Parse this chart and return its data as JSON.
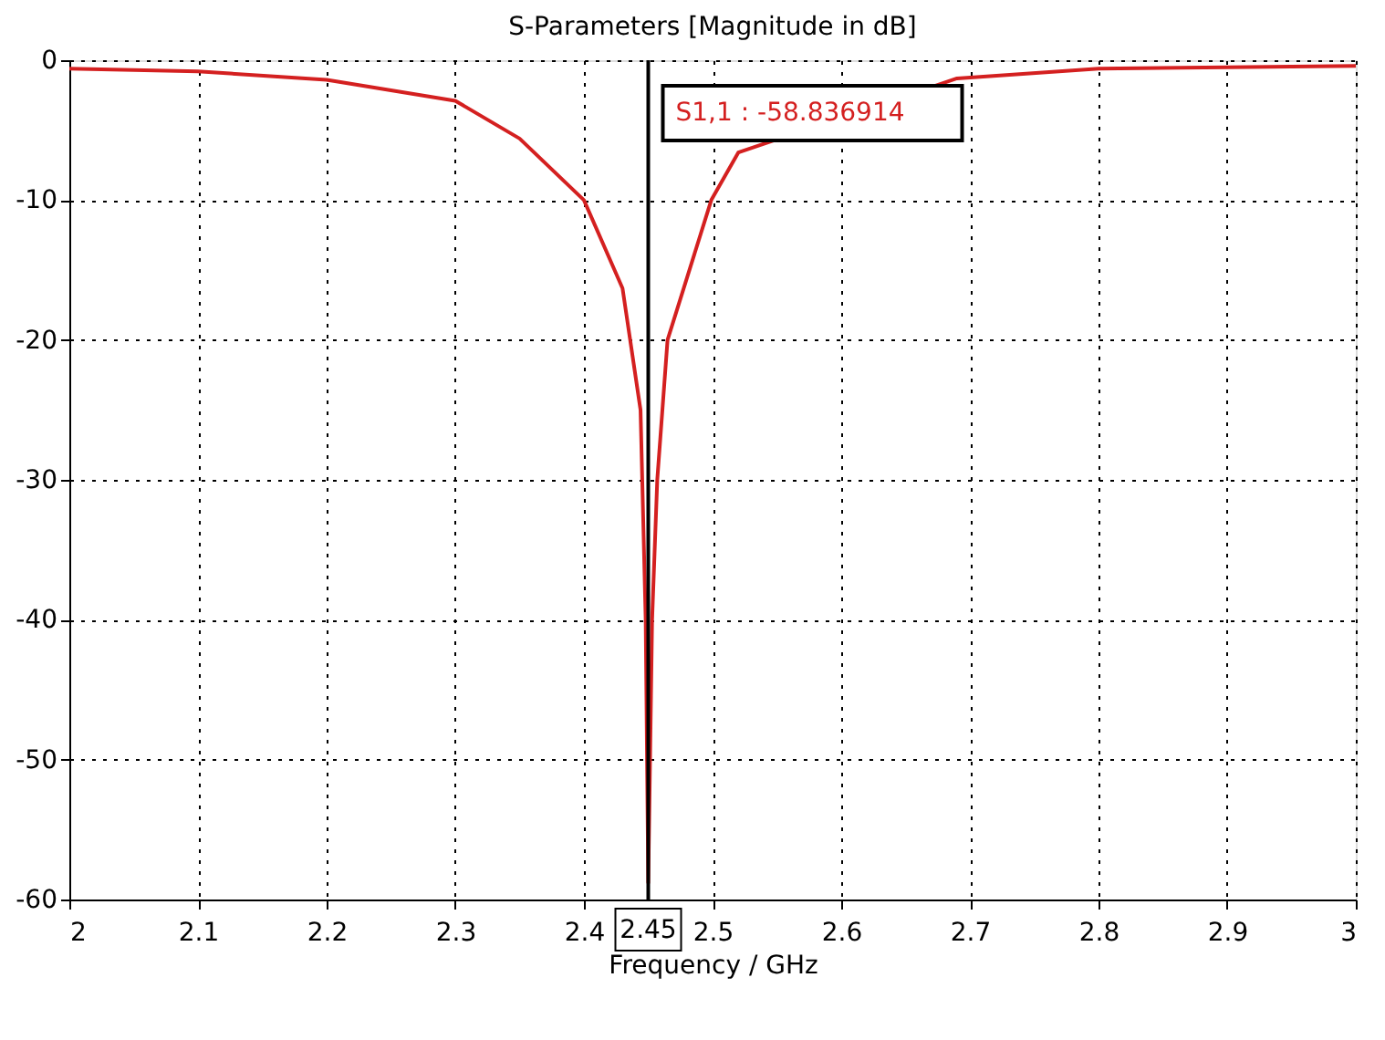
{
  "chart_data": {
    "type": "line",
    "title": "S-Parameters [Magnitude in dB]",
    "xlabel": "Frequency / GHz",
    "x": [
      2.0,
      2.1,
      2.2,
      2.3,
      2.35,
      2.4,
      2.43,
      2.444,
      2.448,
      2.45,
      2.453,
      2.457,
      2.465,
      2.499,
      2.52,
      2.69,
      2.8,
      2.9,
      3.0
    ],
    "series": [
      {
        "color": "#d42020",
        "values": [
          -0.6,
          -0.8,
          -1.4,
          -2.9,
          -5.6,
          -10,
          -16.3,
          -25,
          -40,
          -58.8,
          -40,
          -30,
          -20,
          -10,
          -6.6,
          -1.3,
          -0.6,
          -0.5,
          -0.4
        ]
      }
    ],
    "xlim": [
      2,
      3
    ],
    "xticks": [
      2,
      2.1,
      2.2,
      2.3,
      2.4,
      2.5,
      2.6,
      2.7,
      2.8,
      2.9,
      3
    ],
    "ylim": [
      -60,
      0
    ],
    "yticks": [
      -60,
      -50,
      -40,
      -30,
      -20,
      -10,
      0
    ],
    "grid": true,
    "line_style": "solid",
    "marker": "none",
    "ref_lines": [
      {
        "axis": "x",
        "value": 2.45,
        "label": "2.45",
        "color": "#000000"
      }
    ],
    "annotations": [
      "S1,1 : -58.836914"
    ]
  }
}
